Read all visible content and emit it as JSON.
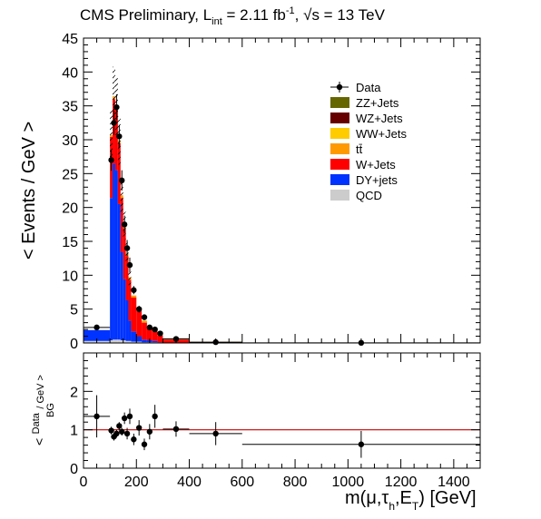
{
  "title": {
    "prefix": "CMS Preliminary, L",
    "lumi_sub": "int",
    "lumi_mid": " = 2.11 fb",
    "lumi_exp": "-1",
    "sqrt_part": ", √s = 13 TeV"
  },
  "colors": {
    "QCD": "#cccccc",
    "DY+jets": "#0033ff",
    "W+Jets": "#ff0000",
    "tt": "#ff9900",
    "WW+Jets": "#ffcc00",
    "WZ+Jets": "#660000",
    "ZZ+Jets": "#666600",
    "ratio_line": "#cc0000"
  },
  "chart_data": [
    {
      "type": "bar",
      "subtype": "stacked-histogram",
      "ylabel": "< Events / GeV >",
      "xlim": [
        0,
        1500
      ],
      "ylim": [
        0,
        45
      ],
      "yticks": [
        "0",
        "5",
        "10",
        "15",
        "20",
        "25",
        "30",
        "35",
        "40",
        "45"
      ],
      "legend_position": "top-right",
      "legend": [
        {
          "key": "Data",
          "label": "Data",
          "style": "marker"
        },
        {
          "key": "ZZ+Jets",
          "label": "ZZ+Jets",
          "style": "fill"
        },
        {
          "key": "WZ+Jets",
          "label": "WZ+Jets",
          "style": "fill"
        },
        {
          "key": "WW+Jets",
          "label": "WW+Jets",
          "style": "fill"
        },
        {
          "key": "tt",
          "label": "tt̄",
          "style": "fill"
        },
        {
          "key": "W+Jets",
          "label": "W+Jets",
          "style": "fill"
        },
        {
          "key": "DY+jets",
          "label": "DY+jets",
          "style": "fill"
        },
        {
          "key": "QCD",
          "label": "QCD",
          "style": "fill"
        }
      ],
      "bins": [
        {
          "x0": 0,
          "x1": 100,
          "QCD": 0.3,
          "DY+jets": 1.6,
          "W+Jets": 0.0,
          "tt": 0.0
        },
        {
          "x0": 100,
          "x1": 110,
          "QCD": 0.4,
          "DY+jets": 21.0,
          "W+Jets": 9.0,
          "tt": 0.3
        },
        {
          "x0": 110,
          "x1": 120,
          "QCD": 0.5,
          "DY+jets": 26.0,
          "W+Jets": 9.5,
          "tt": 0.4
        },
        {
          "x0": 120,
          "x1": 130,
          "QCD": 0.5,
          "DY+jets": 25.0,
          "W+Jets": 9.0,
          "tt": 0.4
        },
        {
          "x0": 130,
          "x1": 140,
          "QCD": 0.5,
          "DY+jets": 20.0,
          "W+Jets": 9.0,
          "tt": 0.4
        },
        {
          "x0": 140,
          "x1": 150,
          "QCD": 0.4,
          "DY+jets": 13.0,
          "W+Jets": 8.0,
          "tt": 0.4
        },
        {
          "x0": 150,
          "x1": 160,
          "QCD": 0.4,
          "DY+jets": 9.0,
          "W+Jets": 7.5,
          "tt": 0.4
        },
        {
          "x0": 160,
          "x1": 170,
          "QCD": 0.3,
          "DY+jets": 6.0,
          "W+Jets": 6.5,
          "tt": 0.4
        },
        {
          "x0": 170,
          "x1": 180,
          "QCD": 0.3,
          "DY+jets": 3.0,
          "W+Jets": 6.0,
          "tt": 0.4
        },
        {
          "x0": 180,
          "x1": 200,
          "QCD": 0.2,
          "DY+jets": 1.5,
          "W+Jets": 5.0,
          "tt": 0.3
        },
        {
          "x0": 200,
          "x1": 220,
          "QCD": 0.2,
          "DY+jets": 0.8,
          "W+Jets": 3.8,
          "tt": 0.3
        },
        {
          "x0": 220,
          "x1": 240,
          "QCD": 0.1,
          "DY+jets": 0.4,
          "W+Jets": 2.5,
          "tt": 0.3
        },
        {
          "x0": 240,
          "x1": 260,
          "QCD": 0.1,
          "DY+jets": 0.3,
          "W+Jets": 1.8,
          "tt": 0.2
        },
        {
          "x0": 260,
          "x1": 280,
          "QCD": 0.1,
          "DY+jets": 0.2,
          "W+Jets": 1.4,
          "tt": 0.2
        },
        {
          "x0": 280,
          "x1": 300,
          "QCD": 0.0,
          "DY+jets": 0.1,
          "W+Jets": 1.0,
          "tt": 0.2
        },
        {
          "x0": 300,
          "x1": 400,
          "QCD": 0.0,
          "DY+jets": 0.05,
          "W+Jets": 0.45,
          "tt": 0.1
        },
        {
          "x0": 400,
          "x1": 600,
          "QCD": 0.0,
          "DY+jets": 0.02,
          "W+Jets": 0.12,
          "tt": 0.03
        },
        {
          "x0": 600,
          "x1": 1500,
          "QCD": 0.0,
          "DY+jets": 0.0,
          "W+Jets": 0.02,
          "tt": 0.01
        }
      ],
      "data_points": [
        {
          "x": 50,
          "y": 2.3,
          "ey": 0.3,
          "xlo": 0,
          "xhi": 100
        },
        {
          "x": 105,
          "y": 27.0,
          "ey": 1.6
        },
        {
          "x": 115,
          "y": 32.5,
          "ey": 1.8
        },
        {
          "x": 125,
          "y": 34.8,
          "ey": 1.9
        },
        {
          "x": 135,
          "y": 30.5,
          "ey": 1.7
        },
        {
          "x": 145,
          "y": 24.0,
          "ey": 1.5
        },
        {
          "x": 155,
          "y": 17.5,
          "ey": 1.3
        },
        {
          "x": 165,
          "y": 14.0,
          "ey": 1.2
        },
        {
          "x": 175,
          "y": 11.5,
          "ey": 1.1
        },
        {
          "x": 190,
          "y": 7.8,
          "ey": 0.6
        },
        {
          "x": 210,
          "y": 5.0,
          "ey": 0.5
        },
        {
          "x": 230,
          "y": 3.8,
          "ey": 0.4
        },
        {
          "x": 250,
          "y": 2.3,
          "ey": 0.35
        },
        {
          "x": 270,
          "y": 2.0,
          "ey": 0.3
        },
        {
          "x": 290,
          "y": 1.4,
          "ey": 0.25
        },
        {
          "x": 350,
          "y": 0.6,
          "ey": 0.08,
          "xlo": 300,
          "xhi": 400
        },
        {
          "x": 500,
          "y": 0.12,
          "ey": 0.03,
          "xlo": 400,
          "xhi": 600
        },
        {
          "x": 1050,
          "y": 0.02,
          "ey": 0.005,
          "xlo": 600,
          "xhi": 1500
        }
      ],
      "uncertainty_band_from": 100,
      "uncertainty_band_to": 180,
      "uncertainty_rel": 0.12
    },
    {
      "type": "scatter",
      "subtype": "ratio",
      "ylabel_num": "Data",
      "ylabel_den": "BG",
      "ylabel_suffix": "/ GeV >",
      "ylabel_prefix": "<",
      "xlabel": "m(μ,τ",
      "xlabel_sub": "h",
      "xlabel_tail": ",E",
      "xlabel_sub2": "T",
      "xlabel_unit": ") [GeV]",
      "xlim": [
        0,
        1500
      ],
      "ylim": [
        0,
        3
      ],
      "xticks": [
        "0",
        "200",
        "400",
        "600",
        "800",
        "1000",
        "1200",
        "1400"
      ],
      "yticks": [
        "0",
        "1",
        "2"
      ],
      "reference_line": 1.0,
      "points": [
        {
          "x": 50,
          "y": 1.35,
          "ey": 0.55,
          "xlo": 0,
          "xhi": 100
        },
        {
          "x": 105,
          "y": 0.98,
          "ey": 0.1
        },
        {
          "x": 115,
          "y": 0.82,
          "ey": 0.1
        },
        {
          "x": 125,
          "y": 0.9,
          "ey": 0.1
        },
        {
          "x": 135,
          "y": 1.1,
          "ey": 0.1
        },
        {
          "x": 145,
          "y": 0.95,
          "ey": 0.1
        },
        {
          "x": 155,
          "y": 1.3,
          "ey": 0.15
        },
        {
          "x": 165,
          "y": 0.9,
          "ey": 0.15
        },
        {
          "x": 175,
          "y": 1.35,
          "ey": 0.2
        },
        {
          "x": 190,
          "y": 0.75,
          "ey": 0.15
        },
        {
          "x": 210,
          "y": 1.05,
          "ey": 0.2
        },
        {
          "x": 230,
          "y": 0.62,
          "ey": 0.15
        },
        {
          "x": 250,
          "y": 0.95,
          "ey": 0.2
        },
        {
          "x": 270,
          "y": 1.35,
          "ey": 0.3
        },
        {
          "x": 350,
          "y": 1.02,
          "ey": 0.2,
          "xlo": 300,
          "xhi": 400
        },
        {
          "x": 500,
          "y": 0.9,
          "ey": 0.3,
          "xlo": 400,
          "xhi": 600
        },
        {
          "x": 1050,
          "y": 0.62,
          "ey": 0.35,
          "xlo": 600,
          "xhi": 1500
        }
      ]
    }
  ]
}
